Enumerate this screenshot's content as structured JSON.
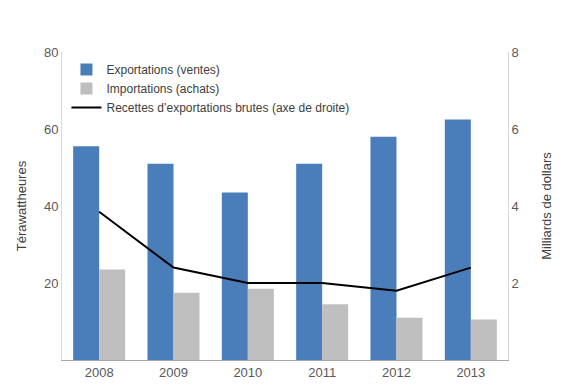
{
  "chart_data": {
    "type": "bar",
    "categories": [
      "2008",
      "2009",
      "2010",
      "2011",
      "2012",
      "2013"
    ],
    "series": [
      {
        "name": "Exportations (ventes)",
        "type": "bar",
        "color": "#4a7ebb",
        "values": [
          55.5,
          51,
          43.5,
          51,
          58,
          62.5
        ]
      },
      {
        "name": "Importations (achats)",
        "type": "bar",
        "color": "#bfbfbf",
        "values": [
          23.5,
          17.5,
          18.5,
          14.5,
          11,
          10.5
        ]
      },
      {
        "name": "Recettes d’exportations brutes (axe de droite)",
        "type": "line",
        "color": "#000000",
        "axis": "y2",
        "values": [
          3.85,
          2.4,
          2.0,
          2.0,
          1.8,
          2.4
        ]
      }
    ],
    "ylabel": "Térawattheures",
    "y2label": "Milliards de dollars",
    "ylim": [
      0,
      80
    ],
    "yticks": [
      20,
      40,
      60,
      80
    ],
    "y2lim": [
      0,
      8
    ],
    "y2ticks": [
      2,
      4,
      6,
      8
    ],
    "grid": false,
    "legend": "upper left"
  }
}
